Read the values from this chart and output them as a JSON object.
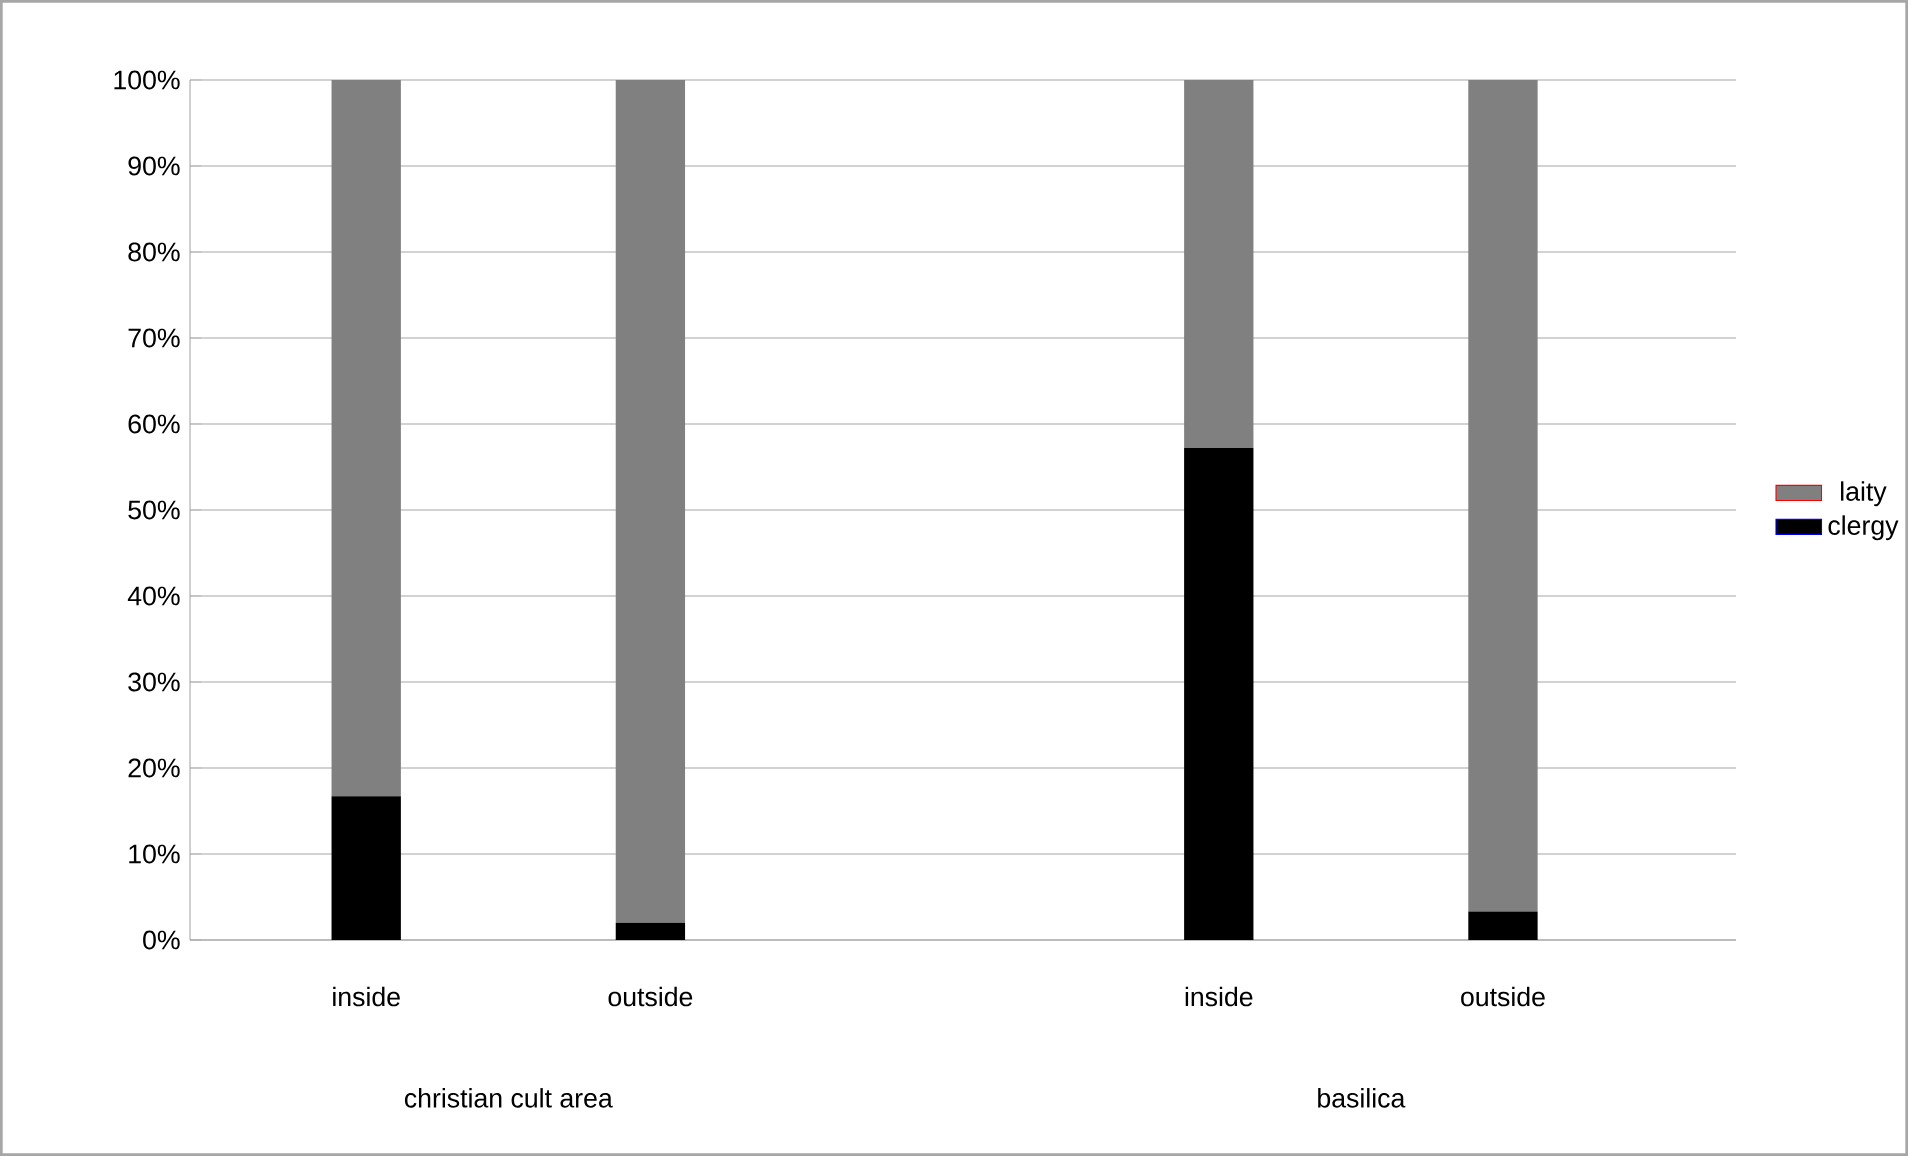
{
  "chart_data": {
    "type": "bar",
    "stacked": true,
    "categories": [
      "inside",
      "outside",
      null,
      "inside",
      "outside"
    ],
    "series": [
      {
        "name": "clergy",
        "color": "#000000",
        "values": [
          16.7,
          2,
          null,
          57.2,
          3.3
        ]
      },
      {
        "name": "laity",
        "color": "#808080",
        "values": [
          83.3,
          98,
          null,
          42.8,
          96.7
        ]
      }
    ],
    "ylim": [
      0,
      100
    ],
    "yticks": [
      {
        "value": 0,
        "label": "0%"
      },
      {
        "value": 10,
        "label": "10%"
      },
      {
        "value": 20,
        "label": "20%"
      },
      {
        "value": 30,
        "label": "30%"
      },
      {
        "value": 40,
        "label": "40%"
      },
      {
        "value": 50,
        "label": "50%"
      },
      {
        "value": 60,
        "label": "60%"
      },
      {
        "value": 70,
        "label": "70%"
      },
      {
        "value": 80,
        "label": "80%"
      },
      {
        "value": 90,
        "label": "90%"
      },
      {
        "value": 100,
        "label": "100%"
      }
    ],
    "grid": "y",
    "legend": "right",
    "annotations": [
      "christian cult area",
      "basilica"
    ]
  }
}
